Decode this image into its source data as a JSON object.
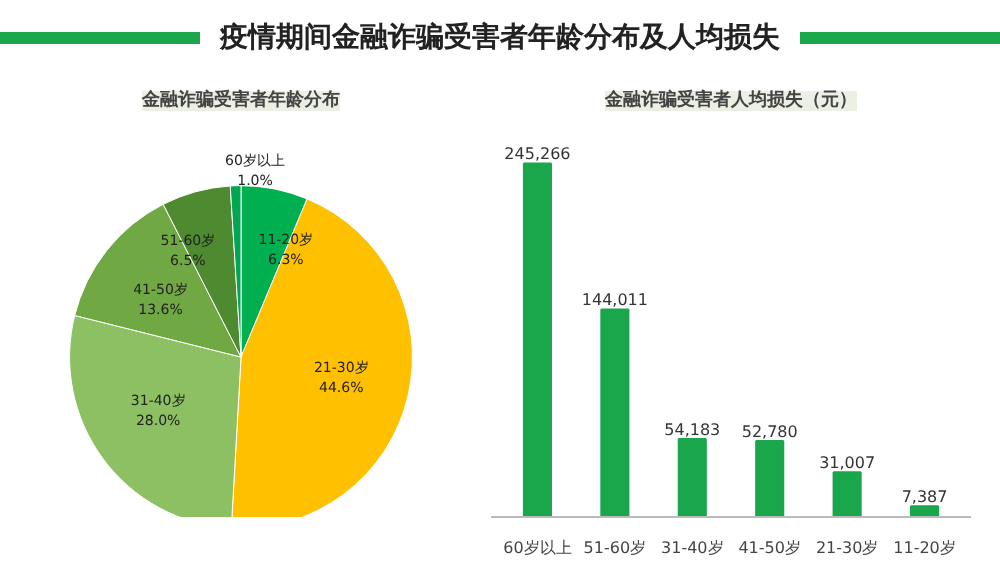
{
  "chart_data": [
    {
      "type": "other",
      "title": "疫情期间金融诈骗受害者年龄分布及人均损失",
      "color": "#1aa64a"
    },
    {
      "type": "pie",
      "title": "金融诈骗受害者年龄分布",
      "categories": [
        "11-20岁",
        "21-30岁",
        "31-40岁",
        "41-50岁",
        "51-60岁",
        "60岁以上"
      ],
      "values": [
        6.3,
        44.6,
        28.0,
        13.6,
        6.5,
        1.0
      ],
      "colors": [
        "#00b050",
        "#ffc000",
        "#8cc063",
        "#70a844",
        "#4e8a30",
        "#00a651"
      ],
      "value_labels": [
        "6.3%",
        "44.6%",
        "28.0%",
        "13.6%",
        "6.5%",
        "1.0%"
      ]
    },
    {
      "type": "bar",
      "title": "金融诈骗受害者人均损失（元）",
      "categories": [
        "60岁以上",
        "51-60岁",
        "31-40岁",
        "41-50岁",
        "21-30岁",
        "11-20岁"
      ],
      "values": [
        245266,
        144011,
        54183,
        52780,
        31007,
        7387
      ],
      "color": "#1aa64a",
      "value_labels": [
        "245,266",
        "144,011",
        "54,183",
        "52,780",
        "31,007",
        "7,387"
      ],
      "grid": false
    }
  ]
}
